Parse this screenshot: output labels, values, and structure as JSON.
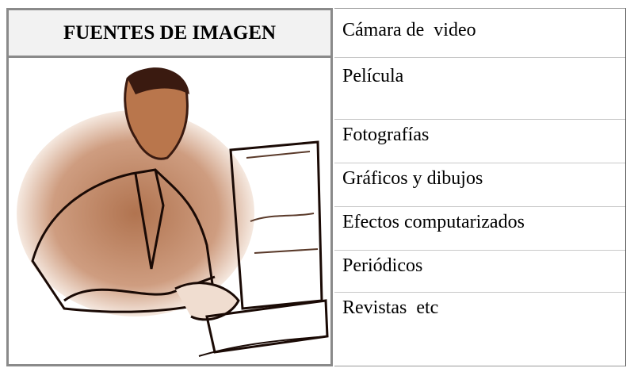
{
  "header": {
    "title": "FUENTES DE IMAGEN"
  },
  "items": [
    "Cámara de  video",
    "Película",
    "Fotografías",
    "Gráficos y dibujos",
    "Efectos computarizados",
    "Periódicos",
    "Revistas  etc"
  ]
}
